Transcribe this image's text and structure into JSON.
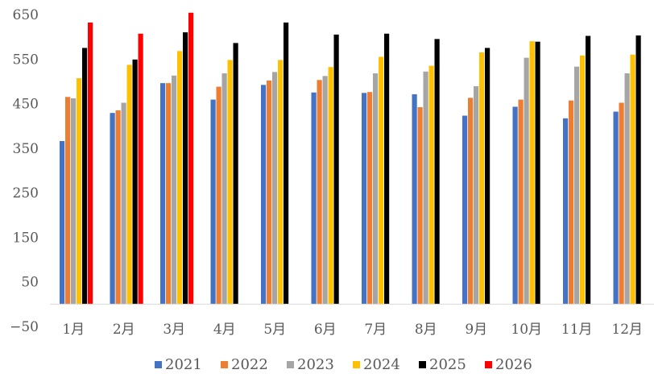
{
  "chart_data": {
    "type": "bar",
    "categories": [
      "1月",
      "2月",
      "3月",
      "4月",
      "5月",
      "6月",
      "7月",
      "8月",
      "9月",
      "10月",
      "11月",
      "12月"
    ],
    "series": [
      {
        "name": "2021",
        "color": "#4472C4",
        "values": [
          366,
          429,
          496,
          459,
          492,
          475,
          474,
          471,
          423,
          443,
          417,
          432
        ]
      },
      {
        "name": "2022",
        "color": "#ED7D31",
        "values": [
          465,
          435,
          496,
          488,
          502,
          503,
          476,
          442,
          463,
          459,
          457,
          452
        ]
      },
      {
        "name": "2023",
        "color": "#A5A5A5",
        "values": [
          462,
          452,
          513,
          518,
          521,
          512,
          518,
          522,
          489,
          553,
          533,
          518
        ]
      },
      {
        "name": "2024",
        "color": "#FFC000",
        "values": [
          507,
          537,
          568,
          548,
          548,
          532,
          555,
          535,
          565,
          590,
          558,
          560
        ]
      },
      {
        "name": "2025",
        "color": "#000000",
        "values": [
          575,
          549,
          610,
          586,
          632,
          605,
          607,
          595,
          575,
          589,
          602,
          603
        ]
      },
      {
        "name": "2026",
        "color": "#FF0000",
        "values": [
          632,
          607,
          654,
          null,
          null,
          null,
          null,
          null,
          null,
          null,
          null,
          null
        ]
      }
    ],
    "yticks": [
      -50,
      50,
      150,
      250,
      350,
      450,
      550,
      650
    ],
    "ylim": [
      -50,
      650
    ],
    "baseline": 0,
    "grid": false,
    "legend": "bottom",
    "title": "",
    "xlabel": "",
    "ylabel": ""
  }
}
